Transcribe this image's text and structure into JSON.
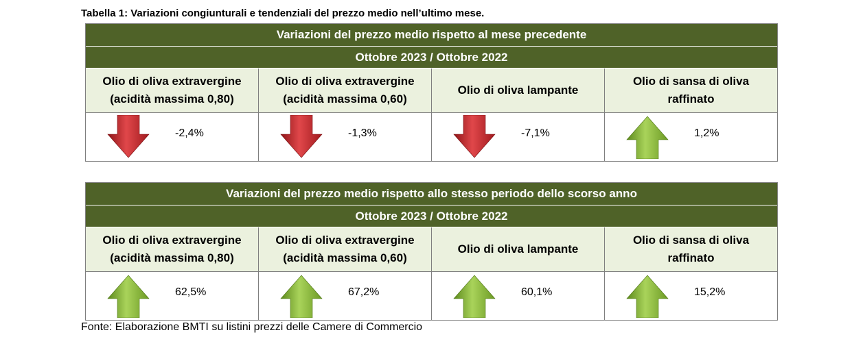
{
  "caption": "Tabella 1: Variazioni congiunturali e tendenziali del prezzo medio nell’ultimo mese.",
  "tables": [
    {
      "title": "Variazioni del prezzo medio rispetto al mese precedente",
      "period": "Ottobre 2023 / Ottobre 2022",
      "columns": [
        {
          "line1": "Olio di oliva extravergine",
          "line2": "(acidità massima 0,80)",
          "direction": "down",
          "value": "-2,4%"
        },
        {
          "line1": "Olio di oliva extravergine",
          "line2": "(acidità massima 0,60)",
          "direction": "down",
          "value": "-1,3%"
        },
        {
          "line1": "Olio di oliva lampante",
          "line2": "",
          "direction": "down",
          "value": "-7,1%"
        },
        {
          "line1": "Olio di sansa di oliva",
          "line2": "raffinato",
          "direction": "up",
          "value": "1,2%"
        }
      ]
    },
    {
      "title": "Variazioni del prezzo medio rispetto allo stesso periodo dello scorso anno",
      "period": "Ottobre 2023 / Ottobre 2022",
      "columns": [
        {
          "line1": "Olio di oliva extravergine",
          "line2": "(acidità massima 0,80)",
          "direction": "up",
          "value": "62,5%"
        },
        {
          "line1": "Olio di oliva extravergine",
          "line2": "(acidità massima 0,60)",
          "direction": "up",
          "value": "67,2%"
        },
        {
          "line1": "Olio di oliva lampante",
          "line2": "",
          "direction": "up",
          "value": "60,1%"
        },
        {
          "line1": "Olio di sansa di oliva",
          "line2": "raffinato",
          "direction": "up",
          "value": "15,2%"
        }
      ]
    }
  ],
  "arrow_colors": {
    "down": "#c0282c",
    "up": "#7fac2e"
  },
  "source": "Fonte: Elaborazione BMTI su listini prezzi delle Camere di Commercio"
}
